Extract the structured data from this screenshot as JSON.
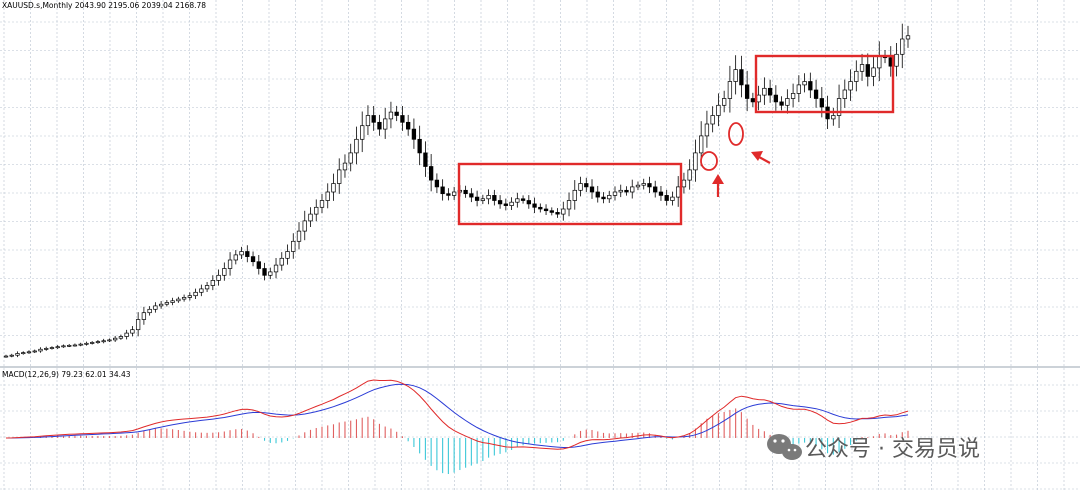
{
  "header": {
    "symbol_line": "XAUUSD.s,Monthly  2043.90 2195.06 2039.04 2168.78",
    "macd_line": "MACD(12,26,9) 79.23 62.01 34.43"
  },
  "watermark": {
    "text": "公众号 · 交易员说",
    "icon": "wechat-icon"
  },
  "colors": {
    "grid": "#b7c2cf",
    "candle": "#000000",
    "box": "#e02a2a",
    "arrow": "#e02a2a",
    "macd_line": "#e02a2a",
    "signal_line": "#2b3cd6",
    "hist_pos": "#e06060",
    "hist_neg": "#3cc8d8"
  },
  "chart_data": [
    {
      "type": "candlestick",
      "title": "",
      "symbol": "XAUUSD.s",
      "timeframe": "Monthly",
      "last_ohlc": {
        "open": 2043.9,
        "high": 2195.06,
        "low": 2039.04,
        "close": 2168.78
      },
      "grid": true,
      "ylim": [
        250,
        2250
      ],
      "closes_approx": [
        285,
        290,
        300,
        305,
        310,
        315,
        325,
        330,
        335,
        340,
        345,
        348,
        350,
        355,
        360,
        365,
        370,
        375,
        380,
        390,
        400,
        420,
        440,
        500,
        540,
        560,
        580,
        590,
        600,
        610,
        620,
        630,
        640,
        660,
        680,
        700,
        730,
        760,
        800,
        850,
        880,
        900,
        870,
        840,
        800,
        760,
        780,
        820,
        860,
        900,
        960,
        1020,
        1080,
        1120,
        1160,
        1200,
        1250,
        1300,
        1380,
        1420,
        1480,
        1560,
        1640,
        1700,
        1660,
        1620,
        1680,
        1720,
        1700,
        1660,
        1620,
        1560,
        1480,
        1400,
        1320,
        1280,
        1240,
        1230,
        1250,
        1260,
        1240,
        1220,
        1200,
        1210,
        1230,
        1200,
        1180,
        1170,
        1190,
        1210,
        1200,
        1180,
        1160,
        1150,
        1140,
        1130,
        1120,
        1150,
        1200,
        1260,
        1300,
        1280,
        1250,
        1220,
        1210,
        1230,
        1250,
        1260,
        1250,
        1280,
        1290,
        1300,
        1280,
        1250,
        1230,
        1200,
        1220,
        1280,
        1320,
        1380,
        1480,
        1580,
        1650,
        1700,
        1760,
        1800,
        1900,
        1970,
        1880,
        1800,
        1780,
        1820,
        1860,
        1820,
        1780,
        1760,
        1800,
        1830,
        1880,
        1900,
        1850,
        1800,
        1750,
        1680,
        1700,
        1800,
        1850,
        1900,
        1960,
        2000,
        1930,
        1980,
        2050,
        2040,
        1990,
        2060,
        2150,
        2169
      ],
      "annotations": [
        {
          "kind": "rectangle",
          "label": "consolidation range 1"
        },
        {
          "kind": "rectangle",
          "label": "consolidation range 2"
        },
        {
          "kind": "circle"
        },
        {
          "kind": "circle"
        },
        {
          "kind": "arrow"
        },
        {
          "kind": "arrow"
        }
      ]
    },
    {
      "type": "macd",
      "params": "12,26,9",
      "readout": [
        79.23,
        62.01,
        34.43
      ],
      "series": [
        {
          "name": "MACD"
        },
        {
          "name": "Signal"
        },
        {
          "name": "Histogram"
        }
      ]
    }
  ]
}
